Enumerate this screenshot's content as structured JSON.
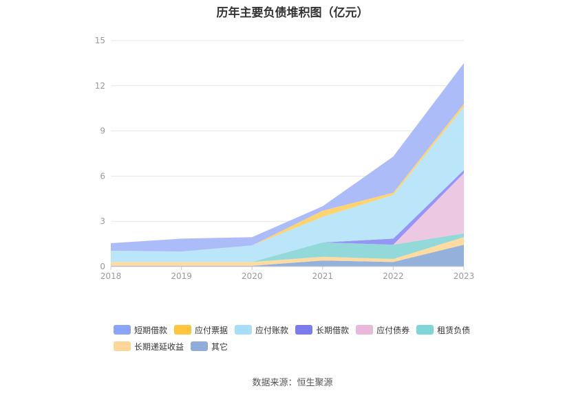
{
  "chart_data": {
    "type": "area",
    "stacked": true,
    "title": "历年主要负债堆积图（亿元）",
    "categories": [
      "2018",
      "2019",
      "2020",
      "2021",
      "2022",
      "2023"
    ],
    "ylim": [
      0,
      15
    ],
    "yticks": [
      0,
      3,
      6,
      9,
      12,
      15
    ],
    "grid": true,
    "legend_position": "bottom",
    "series": [
      {
        "name": "其它",
        "color": "#8eadd9",
        "values": [
          0.05,
          0.05,
          0.05,
          0.4,
          0.3,
          1.45
        ]
      },
      {
        "name": "长期递延收益",
        "color": "#ffd99b",
        "values": [
          0.25,
          0.25,
          0.25,
          0.25,
          0.2,
          0.5
        ]
      },
      {
        "name": "租赁负债",
        "color": "#8dd7d7",
        "values": [
          0.0,
          0.0,
          0.0,
          0.95,
          0.95,
          0.25
        ]
      },
      {
        "name": "应付债券",
        "color": "#ecc5e2",
        "values": [
          0.0,
          0.0,
          0.0,
          0.0,
          0.0,
          4.0
        ]
      },
      {
        "name": "长期借款",
        "color": "#8f8ff5",
        "values": [
          0.0,
          0.0,
          0.0,
          0.0,
          0.4,
          0.2
        ]
      },
      {
        "name": "应付账款",
        "color": "#b7e4f8",
        "values": [
          0.75,
          0.7,
          1.1,
          1.7,
          2.9,
          4.2
        ]
      },
      {
        "name": "应付票据",
        "color": "#ffd166",
        "values": [
          0.0,
          0.0,
          0.0,
          0.4,
          0.15,
          0.2
        ]
      },
      {
        "name": "短期借款",
        "color": "#a7b8f9",
        "values": [
          0.5,
          0.85,
          0.55,
          0.3,
          2.4,
          2.7
        ]
      }
    ]
  },
  "legend": {
    "items": [
      {
        "label": "短期借款",
        "color": "#8aa4f7"
      },
      {
        "label": "应付票据",
        "color": "#ffc53d"
      },
      {
        "label": "应付账款",
        "color": "#a8def7"
      },
      {
        "label": "长期借款",
        "color": "#7b7cf0"
      },
      {
        "label": "应付债券",
        "color": "#e9b8da"
      },
      {
        "label": "租赁负债",
        "color": "#80d6d6"
      },
      {
        "label": "长期递延收益",
        "color": "#ffd699"
      },
      {
        "label": "其它",
        "color": "#8eadd9"
      }
    ]
  },
  "source": "数据来源：恒生聚源"
}
